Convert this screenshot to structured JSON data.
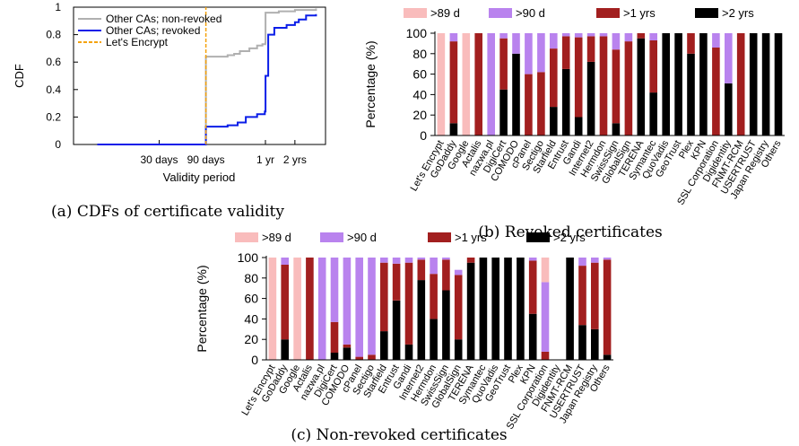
{
  "colors": {
    "gt89d": "#f9bcbc",
    "gt90d": "#b983ee",
    "gt1y": "#a21f1f",
    "gt2y": "#000000",
    "nonrevoked": "#b0b0b0",
    "revoked": "#0b1ee8",
    "letsencrypt": "#f4a20c"
  },
  "captions": {
    "a": "(a) CDFs of certificate validity",
    "b": "(b) Revoked certificates",
    "c": "(c) Non-revoked certificates"
  },
  "chart_data": [
    {
      "id": "a",
      "type": "line",
      "xlabel": "Validity period",
      "ylabel": "CDF",
      "xticks": [
        "30 days",
        "90 days",
        "1 yr",
        "2 yrs"
      ],
      "yticks": [
        "0",
        "0.2",
        "0.4",
        "0.6",
        "0.8",
        "1"
      ],
      "ylim": [
        0,
        1
      ],
      "legend_position": "top-left",
      "series": [
        {
          "name": "Other CAs; non-revoked",
          "color_key": "nonrevoked",
          "style": "solid",
          "points": [
            [
              7,
              0
            ],
            [
              89,
              0
            ],
            [
              90,
              0.64
            ],
            [
              150,
              0.65
            ],
            [
              175,
              0.66
            ],
            [
              200,
              0.68
            ],
            [
              250,
              0.7
            ],
            [
              300,
              0.72
            ],
            [
              340,
              0.73
            ],
            [
              364,
              0.74
            ],
            [
              366,
              0.96
            ],
            [
              500,
              0.97
            ],
            [
              730,
              0.98
            ],
            [
              1200,
              0.99
            ]
          ]
        },
        {
          "name": "Other CAs; revoked",
          "color_key": "revoked",
          "style": "solid",
          "points": [
            [
              7,
              0
            ],
            [
              89,
              0
            ],
            [
              90,
              0.13
            ],
            [
              150,
              0.14
            ],
            [
              190,
              0.16
            ],
            [
              230,
              0.2
            ],
            [
              300,
              0.22
            ],
            [
              360,
              0.24
            ],
            [
              366,
              0.5
            ],
            [
              390,
              0.8
            ],
            [
              450,
              0.85
            ],
            [
              600,
              0.87
            ],
            [
              730,
              0.89
            ],
            [
              800,
              0.91
            ],
            [
              950,
              0.94
            ],
            [
              1200,
              0.95
            ]
          ]
        },
        {
          "name": "Let's Encrypt",
          "color_key": "letsencrypt",
          "style": "dashed",
          "points": [
            [
              90,
              0
            ],
            [
              90,
              1
            ]
          ]
        }
      ]
    },
    {
      "id": "b",
      "type": "bar",
      "stacked": true,
      "ylabel": "Percentage (%)",
      "yticks": [
        "0",
        "20",
        "40",
        "60",
        "80",
        "100"
      ],
      "ylim": [
        0,
        100
      ],
      "legend": [
        ">89 d",
        ">90 d",
        ">1 yrs",
        ">2 yrs"
      ],
      "categories": [
        "Let's Encrypt",
        "GoDaddy",
        "Google",
        "Actalis",
        "nazwa.pl",
        "DigiCert",
        "COMODO",
        "cPanel",
        "Sectigo",
        "Starfield",
        "Entrust",
        "Gandi",
        "Internet2",
        "Hermdon",
        "SwissSign",
        "GlobalSign",
        "TERENA",
        "Symantec",
        "QuoVadis",
        "GeoTrust",
        "Plex",
        "KPN",
        "SSL Corporation",
        "Digidentity",
        "FNMT-RCM",
        "USERTRUST",
        "Japan Registry",
        "Others"
      ],
      "series": [
        {
          "name": ">2 yrs",
          "color_key": "gt2y",
          "values": [
            0,
            12,
            0,
            0,
            0,
            45,
            80,
            0,
            0,
            28,
            65,
            18,
            72,
            0,
            12,
            0,
            95,
            42,
            100,
            100,
            80,
            100,
            0,
            51,
            0,
            100,
            100,
            100
          ]
        },
        {
          "name": ">1 yrs",
          "color_key": "gt1y",
          "values": [
            0,
            80,
            0,
            100,
            0,
            50,
            0,
            60,
            62,
            57,
            32,
            78,
            25,
            97,
            72,
            92,
            5,
            51,
            0,
            0,
            20,
            0,
            86,
            0,
            100,
            0,
            0,
            0
          ]
        },
        {
          "name": ">90 d",
          "color_key": "gt90d",
          "values": [
            0,
            8,
            0,
            0,
            100,
            5,
            20,
            40,
            38,
            15,
            3,
            4,
            3,
            3,
            16,
            8,
            0,
            7,
            0,
            0,
            0,
            0,
            14,
            49,
            0,
            0,
            0,
            0
          ]
        },
        {
          "name": ">89 d",
          "color_key": "gt89d",
          "values": [
            100,
            0,
            100,
            0,
            0,
            0,
            0,
            0,
            0,
            0,
            0,
            0,
            0,
            0,
            0,
            0,
            0,
            0,
            0,
            0,
            0,
            0,
            0,
            0,
            0,
            0,
            0,
            0
          ]
        }
      ]
    },
    {
      "id": "c",
      "type": "bar",
      "stacked": true,
      "ylabel": "Percentage (%)",
      "yticks": [
        "0",
        "20",
        "40",
        "60",
        "80",
        "100"
      ],
      "ylim": [
        0,
        100
      ],
      "legend": [
        ">89 d",
        ">90 d",
        ">1 yrs",
        ">2 yrs"
      ],
      "categories": [
        "Let's Encrypt",
        "GoDaddy",
        "Google",
        "Actalis",
        "nazwa.pl",
        "DigiCert",
        "COMODO",
        "cPanel",
        "Sectigo",
        "Starfield",
        "Entrust",
        "Gandi",
        "Internet2",
        "Hermdon",
        "SwissSign",
        "GlobalSign",
        "TERENA",
        "Symantec",
        "QuoVadis",
        "GeoTrust",
        "Plex",
        "KPN",
        "SSL Corporation",
        "Digidentity",
        "FNMT-RCM",
        "USERTRUST",
        "Japan Registry",
        "Others"
      ],
      "series": [
        {
          "name": ">2 yrs",
          "color_key": "gt2y",
          "values": [
            0,
            20,
            0,
            0,
            0,
            7,
            12,
            0,
            0,
            28,
            58,
            15,
            78,
            40,
            68,
            20,
            95,
            100,
            100,
            100,
            100,
            45,
            0,
            0,
            100,
            34,
            30,
            5
          ]
        },
        {
          "name": ">1 yrs",
          "color_key": "gt1y",
          "values": [
            0,
            73,
            0,
            100,
            0,
            30,
            3,
            3,
            5,
            67,
            36,
            80,
            20,
            44,
            30,
            63,
            5,
            0,
            0,
            0,
            0,
            52,
            8,
            0,
            0,
            58,
            65,
            93
          ]
        },
        {
          "name": ">90 d",
          "color_key": "gt90d",
          "values": [
            0,
            7,
            0,
            0,
            100,
            63,
            85,
            97,
            95,
            5,
            6,
            5,
            2,
            16,
            2,
            5,
            0,
            0,
            0,
            0,
            0,
            3,
            68,
            0,
            0,
            8,
            5,
            2
          ]
        },
        {
          "name": ">89 d",
          "color_key": "gt89d",
          "values": [
            100,
            0,
            100,
            0,
            0,
            0,
            0,
            0,
            0,
            0,
            0,
            0,
            0,
            0,
            0,
            0,
            0,
            0,
            0,
            0,
            0,
            0,
            24,
            0,
            0,
            0,
            0,
            0
          ]
        }
      ]
    }
  ]
}
